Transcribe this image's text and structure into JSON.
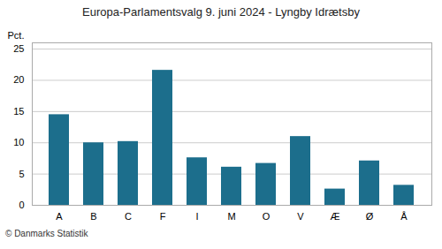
{
  "chart_data": {
    "type": "bar",
    "title": "Europa-Parlamentsvalg 9. juni 2024 - Lyngby Idrætsby",
    "categories": [
      "A",
      "B",
      "C",
      "F",
      "I",
      "M",
      "O",
      "V",
      "Æ",
      "Ø",
      "Å"
    ],
    "values": [
      14.5,
      10.0,
      10.2,
      21.6,
      7.6,
      6.1,
      6.7,
      11.0,
      2.6,
      7.1,
      3.2
    ],
    "color": "#1c6e8c",
    "ylabel": "Pct.",
    "ylim": [
      0,
      26
    ],
    "yticks": [
      0,
      5,
      10,
      15,
      20,
      25
    ],
    "grid": true,
    "footer": "© Danmarks Statistik"
  }
}
